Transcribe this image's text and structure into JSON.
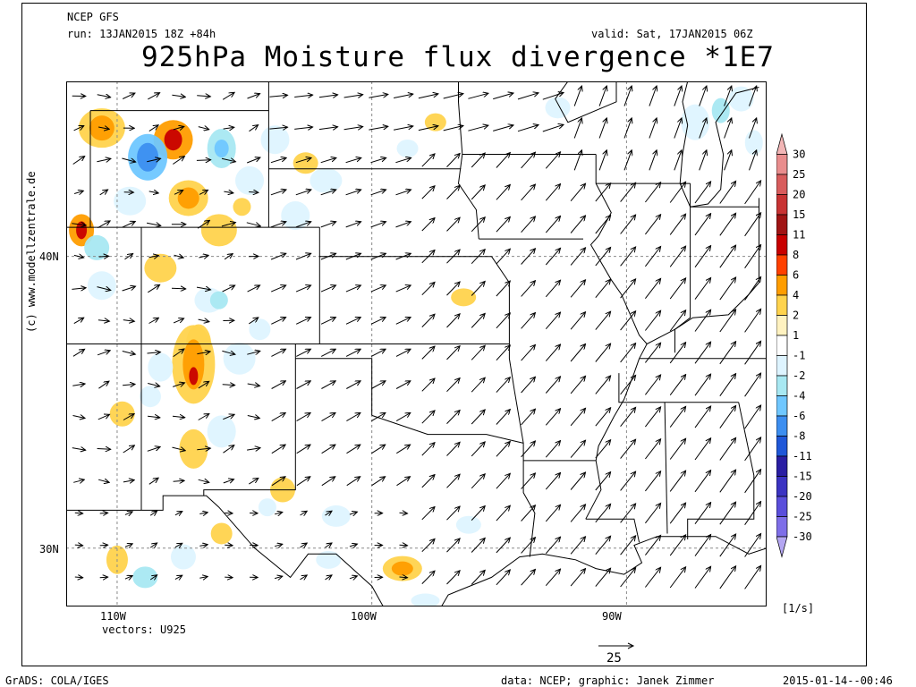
{
  "header": {
    "model": "NCEP GFS",
    "run": "run: 13JAN2015 18Z +84h",
    "valid": "valid: Sat, 17JAN2015 06Z",
    "title": "925hPa Moisture flux divergence *1E7"
  },
  "axes": {
    "lon_ticks": [
      "110W",
      "100W",
      "90W"
    ],
    "lat_ticks": [
      "40N",
      "30N"
    ],
    "lon_range": [
      -112,
      -84.5
    ],
    "lat_range": [
      28,
      46
    ]
  },
  "vectors": {
    "label": "vectors: U925",
    "ref_value": "25"
  },
  "colorbar": {
    "unit": "[1/s]",
    "labels": [
      "30",
      "25",
      "20",
      "15",
      "11",
      "8",
      "6",
      "4",
      "2",
      "1",
      "-1",
      "-2",
      "-4",
      "-6",
      "-8",
      "-11",
      "-15",
      "-20",
      "-25",
      "-30"
    ],
    "colors": [
      "#f2b6b6",
      "#e98d8d",
      "#d85c5c",
      "#c83333",
      "#a01414",
      "#c80000",
      "#ff4000",
      "#ff9d00",
      "#ffd34d",
      "#fff2c0",
      "#ffffff",
      "#def4ff",
      "#a8e8f2",
      "#6fc7ff",
      "#3c8ef0",
      "#1f57d8",
      "#2a1ea3",
      "#3b33c2",
      "#5a4edb",
      "#7e6ee8",
      "#b4a6f2"
    ]
  },
  "credit": {
    "site": "(c) www.modellzentrale.de"
  },
  "footer": {
    "left": "GrADS: COLA/IGES",
    "middle": "data: NCEP; graphic: Janek Zimmer",
    "right": "2015-01-14--00:46"
  }
}
